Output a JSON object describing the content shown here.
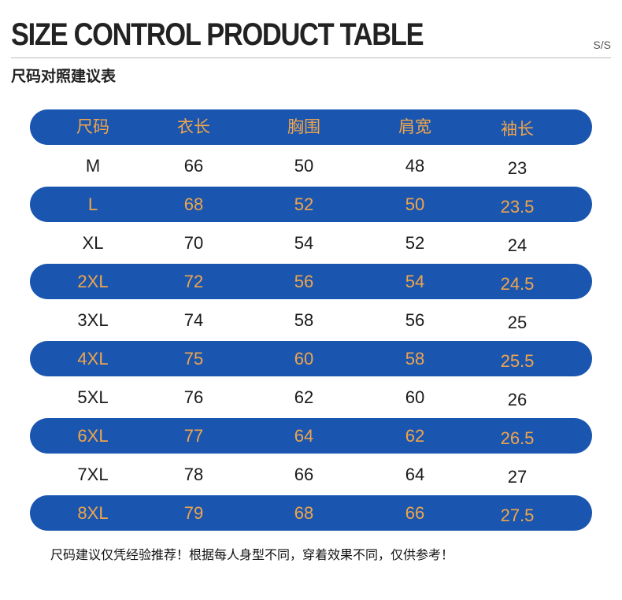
{
  "header": {
    "title": "SIZE CONTROL PRODUCT TABLE",
    "code": "S/S",
    "subtitle": "尺码对照建议表"
  },
  "table": {
    "columns": [
      "尺码",
      "衣长",
      "胸围",
      "肩宽",
      "袖长"
    ],
    "rows": [
      [
        "M",
        "66",
        "50",
        "48",
        "23"
      ],
      [
        "L",
        "68",
        "52",
        "50",
        "23.5"
      ],
      [
        "XL",
        "70",
        "54",
        "52",
        "24"
      ],
      [
        "2XL",
        "72",
        "56",
        "54",
        "24.5"
      ],
      [
        "3XL",
        "74",
        "58",
        "56",
        "25"
      ],
      [
        "4XL",
        "75",
        "60",
        "58",
        "25.5"
      ],
      [
        "5XL",
        "76",
        "62",
        "60",
        "26"
      ],
      [
        "6XL",
        "77",
        "64",
        "62",
        "26.5"
      ],
      [
        "7XL",
        "78",
        "66",
        "64",
        "27"
      ],
      [
        "8XL",
        "79",
        "68",
        "66",
        "27.5"
      ]
    ]
  },
  "footer": {
    "note": "尺码建议仅凭经验推荐！根据每人身型不同，穿着效果不同，仅供参考！"
  },
  "colors": {
    "band": "#1a56b0",
    "band_text": "#f0a54a",
    "plain_text": "#1a1a1a"
  }
}
